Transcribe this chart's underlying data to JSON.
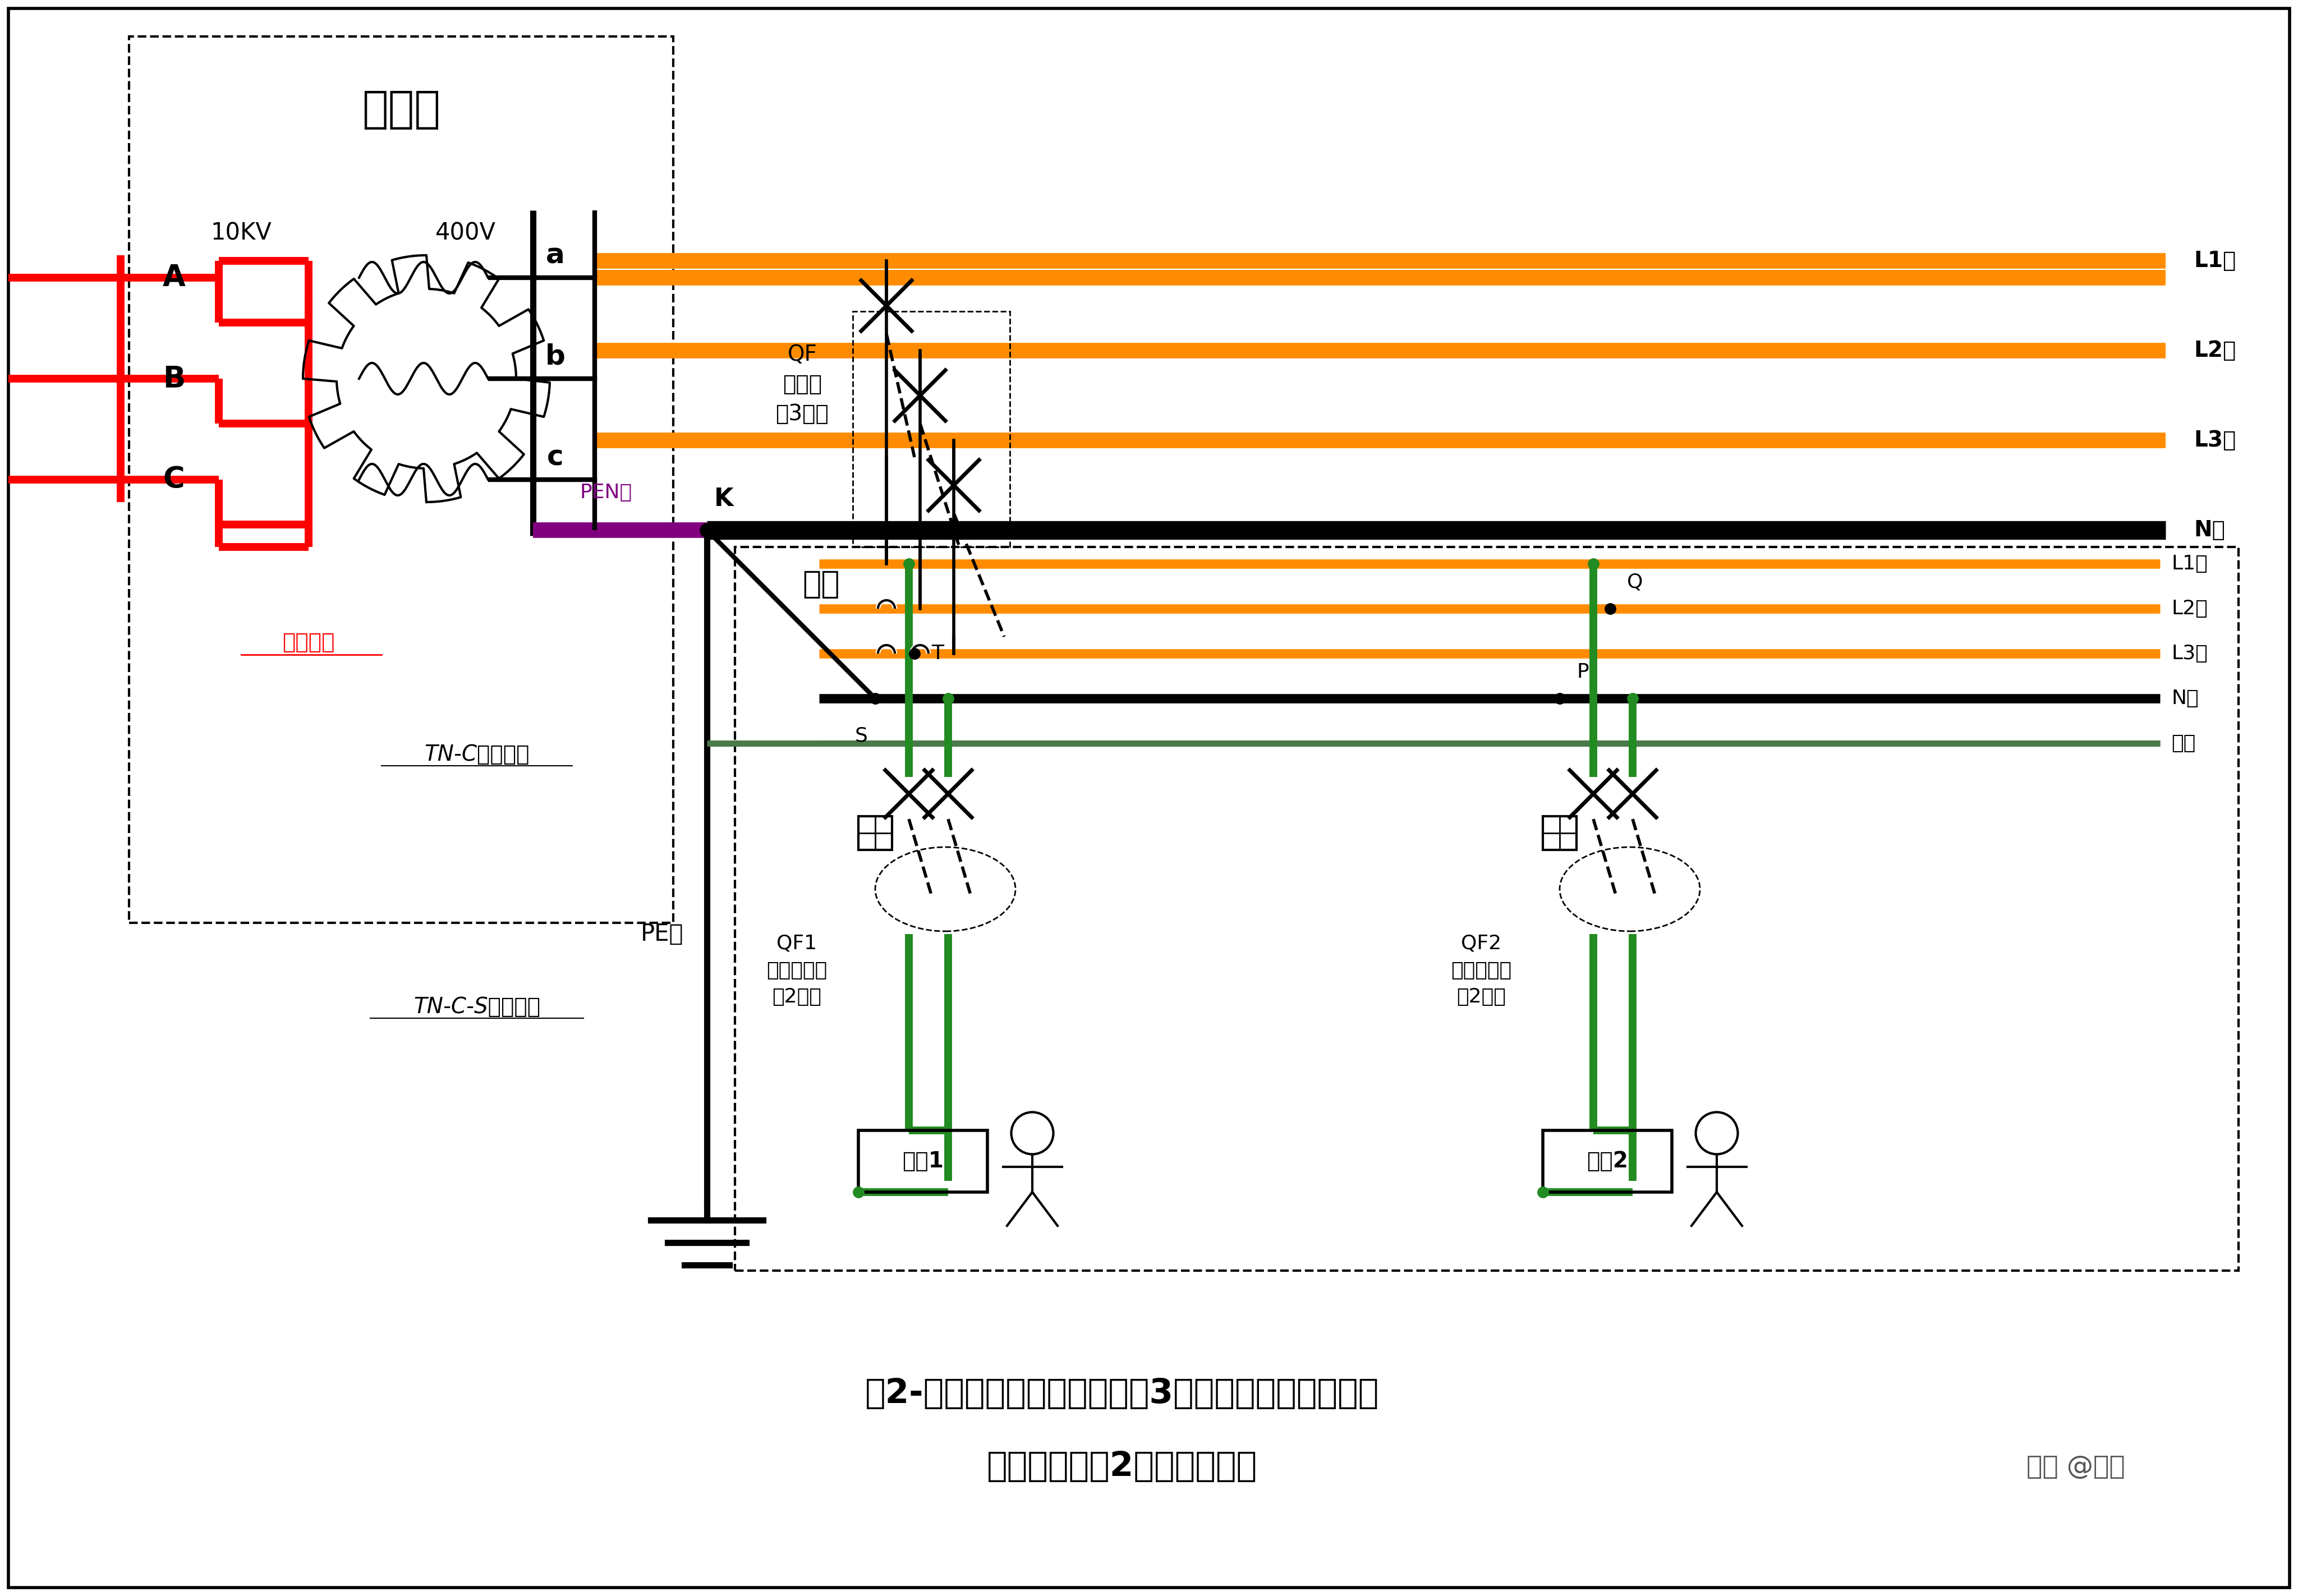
{
  "bg_color": "#ffffff",
  "line_colors": {
    "L1": "#FF8C00",
    "L2": "#FF8C00",
    "L3": "#FF8C00",
    "N": "#000000",
    "PEN": "#800080",
    "PE": "#000000",
    "green": "#228B22",
    "red": "#FF0000",
    "black": "#000000",
    "gray_line": "#555555"
  },
  "labels": {
    "biandianshi": "变电室",
    "10kv": "10KV",
    "400v": "400V",
    "a": "a",
    "b": "b",
    "c": "c",
    "pen": "PEN线",
    "k": "K",
    "L1": "L1线",
    "L2": "L2线",
    "L3": "L3线",
    "N": "N线",
    "huni": "户内",
    "QF_label": "QF\n断路器\n（3极）",
    "QF1_label": "QF1\n漏保断路器\n（2极）",
    "QF2_label": "QF2\n漏保断路器\n（2极）",
    "shebei1": "设备1",
    "shebei2": "设备2",
    "pe": "PE线",
    "tnc": "TN-C接地系统",
    "tncs": "TN-C-S接地系统",
    "dijie": "系统接地",
    "S": "S",
    "T": "T",
    "P": "P",
    "Q": "Q",
    "L1x": "L1线",
    "L2x": "L2线",
    "L3x": "L3线",
    "Nx": "N线",
    "dix": "地线",
    "caption1": "图2-建议方案：总断路器采用3极断路器（无漏保），",
    "caption2": "单相支路增加2极漏保断路器",
    "zhihu": "知乎 @老弟"
  }
}
